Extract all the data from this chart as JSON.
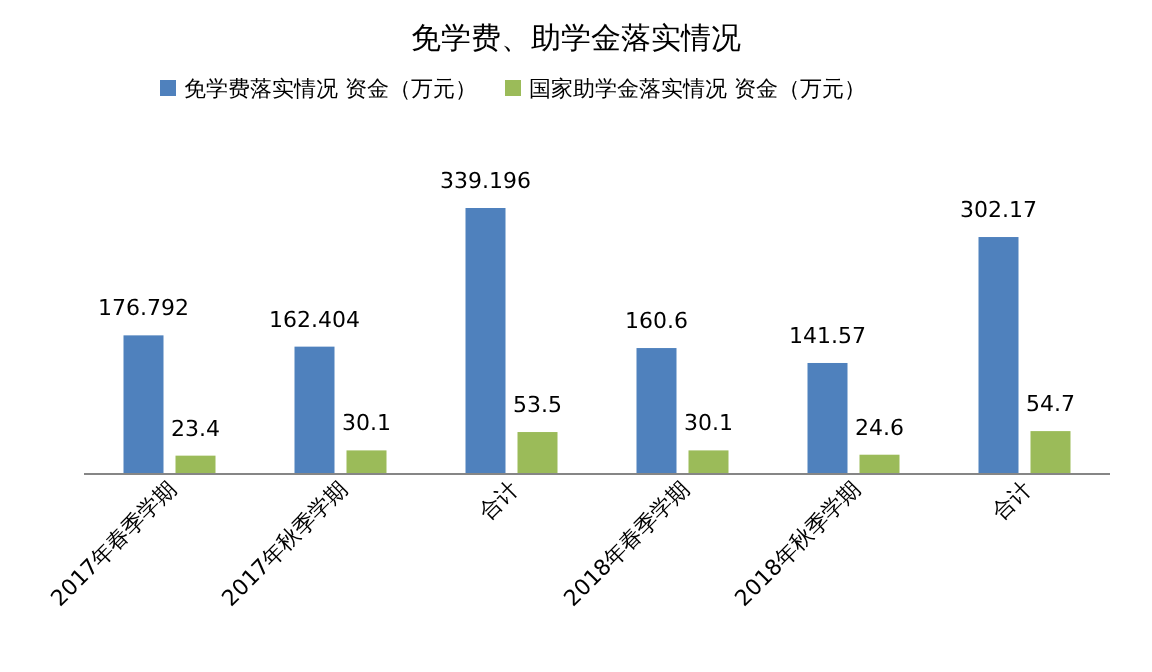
{
  "chart_data": {
    "type": "bar",
    "title": "免学费、助学金落实情况",
    "categories": [
      "2017年春季学期",
      "2017年秋季学期",
      "合计",
      "2018年春季学期",
      "2018年秋季学期",
      "合计"
    ],
    "series": [
      {
        "name": "免学费落实情况 资金（万元）",
        "color": "#4f81bd",
        "values": [
          176.792,
          162.404,
          339.196,
          160.6,
          141.57,
          302.17
        ]
      },
      {
        "name": "国家助学金落实情况 资金（万元）",
        "color": "#9bbb59",
        "values": [
          23.4,
          30.1,
          53.5,
          30.1,
          24.6,
          54.7
        ]
      }
    ],
    "data_labels": true,
    "legend": "top"
  }
}
